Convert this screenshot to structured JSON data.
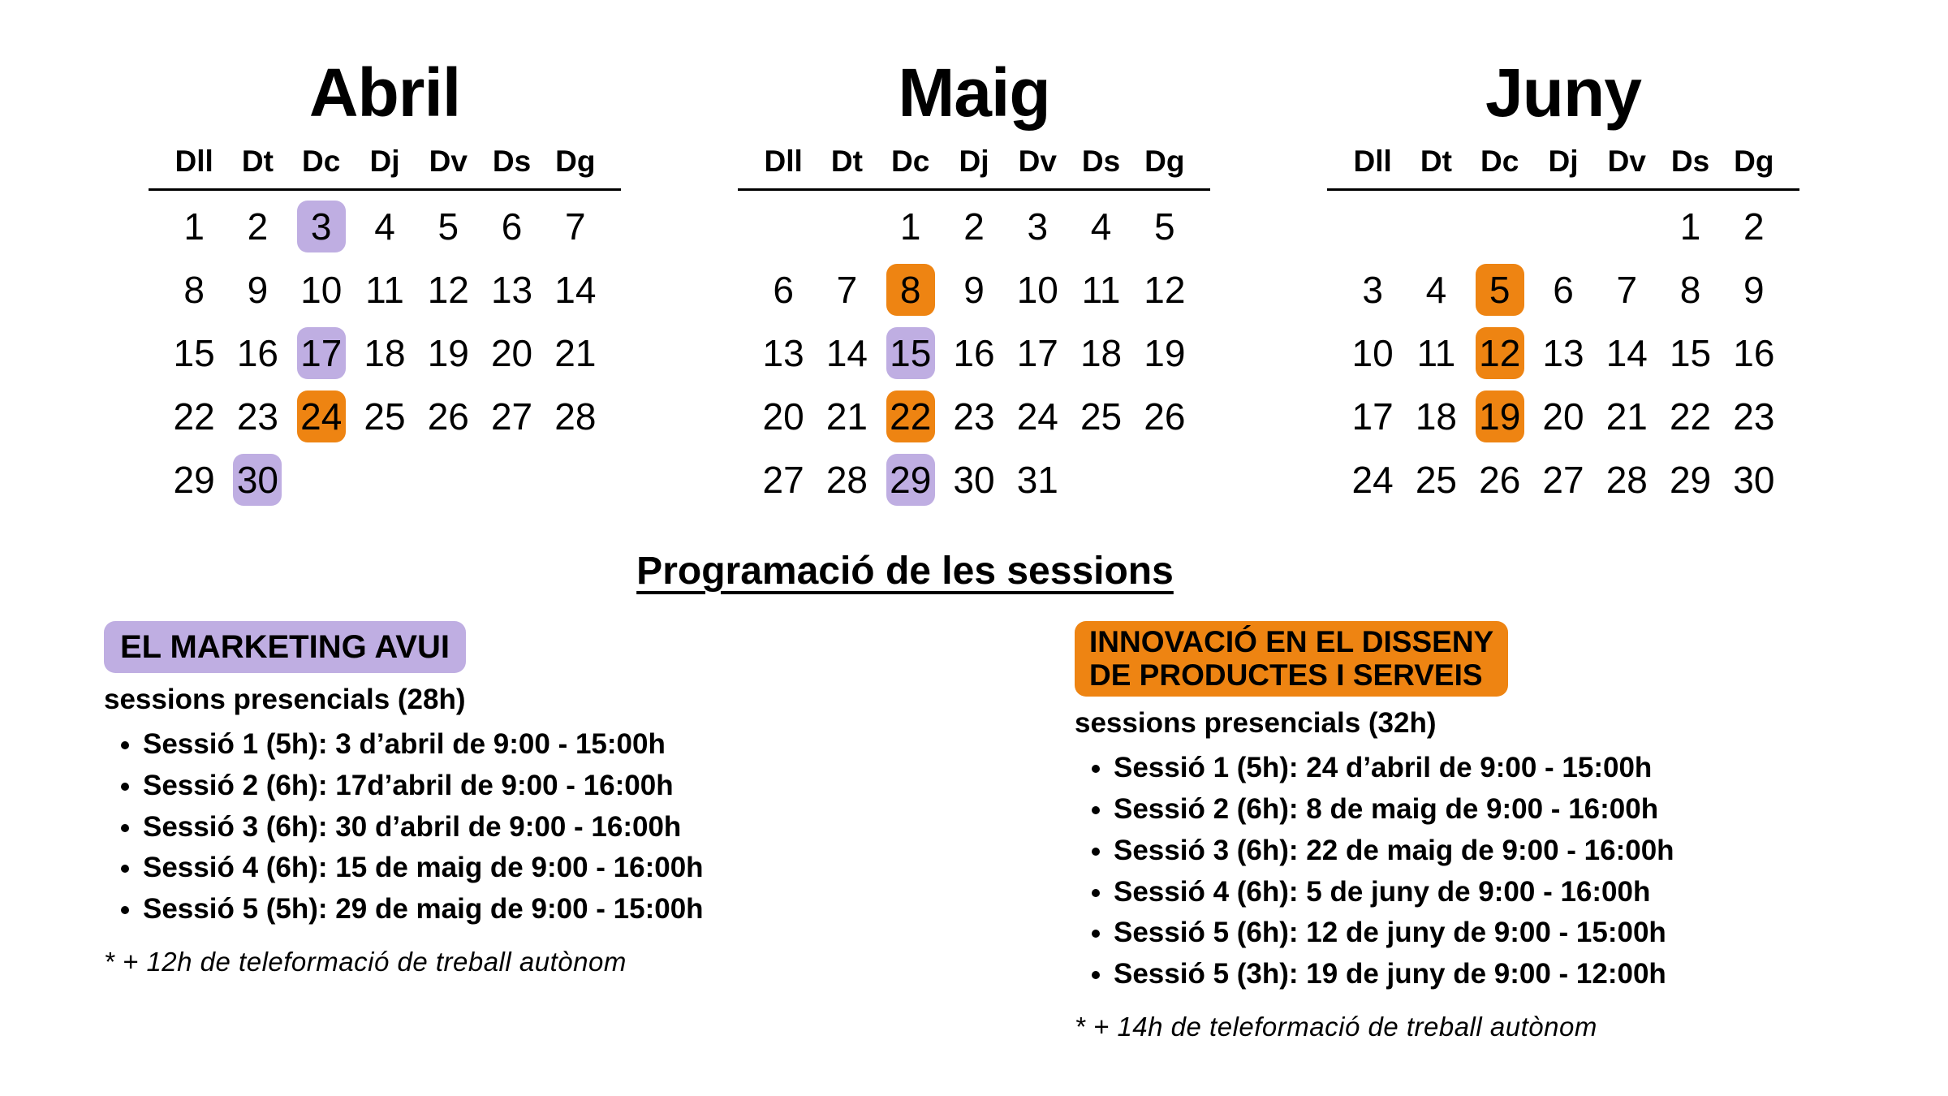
{
  "colors": {
    "purple": "#BFAEE2",
    "orange": "#EE8412",
    "text": "#000000",
    "background": "#FFFFFF"
  },
  "weekday_headers": [
    "Dll",
    "Dt",
    "Dc",
    "Dj",
    "Dv",
    "Ds",
    "Dg"
  ],
  "calendars": [
    {
      "title": "Abril",
      "weeks": [
        [
          "1",
          "2",
          "3",
          "4",
          "5",
          "6",
          "7"
        ],
        [
          "8",
          "9",
          "10",
          "11",
          "12",
          "13",
          "14"
        ],
        [
          "15",
          "16",
          "17",
          "18",
          "19",
          "20",
          "21"
        ],
        [
          "22",
          "23",
          "24",
          "25",
          "26",
          "27",
          "28"
        ],
        [
          "29",
          "30",
          "",
          "",
          "",
          "",
          ""
        ]
      ],
      "highlights": {
        "3": "purple",
        "17": "purple",
        "24": "orange",
        "30": "purple"
      }
    },
    {
      "title": "Maig",
      "weeks": [
        [
          "",
          "",
          "1",
          "2",
          "3",
          "4",
          "5"
        ],
        [
          "6",
          "7",
          "8",
          "9",
          "10",
          "11",
          "12"
        ],
        [
          "13",
          "14",
          "15",
          "16",
          "17",
          "18",
          "19"
        ],
        [
          "20",
          "21",
          "22",
          "23",
          "24",
          "25",
          "26"
        ],
        [
          "27",
          "28",
          "29",
          "30",
          "31",
          "",
          ""
        ]
      ],
      "highlights": {
        "8": "orange",
        "15": "purple",
        "22": "orange",
        "29": "purple"
      }
    },
    {
      "title": "Juny",
      "weeks": [
        [
          "",
          "",
          "",
          "",
          "",
          "1",
          "2"
        ],
        [
          "3",
          "4",
          "5",
          "6",
          "7",
          "8",
          "9"
        ],
        [
          "10",
          "11",
          "12",
          "13",
          "14",
          "15",
          "16"
        ],
        [
          "17",
          "18",
          "19",
          "20",
          "21",
          "22",
          "23"
        ],
        [
          "24",
          "25",
          "26",
          "27",
          "28",
          "29",
          "30"
        ]
      ],
      "highlights": {
        "5": "orange",
        "12": "orange",
        "19": "orange"
      }
    }
  ],
  "sessions_heading": "Programació de les sessions",
  "courses": [
    {
      "title_lines": [
        "EL MARKETING AVUI"
      ],
      "highlight_color": "purple",
      "subtitle": "sessions presencials (28h)",
      "sessions": [
        "Sessió 1 (5h): 3 d’abril de 9:00 - 15:00h",
        "Sessió 2 (6h): 17d’abril de 9:00 - 16:00h",
        "Sessió 3 (6h): 30 d’abril de 9:00 - 16:00h",
        "Sessió 4 (6h): 15 de maig de 9:00 - 16:00h",
        "Sessió 5 (5h): 29 de maig de 9:00 - 15:00h"
      ],
      "footnote": "* + 12h de teleformació de treball autònom"
    },
    {
      "title_lines": [
        "INNOVACIÓ EN EL DISSENY",
        "DE PRODUCTES I SERVEIS"
      ],
      "highlight_color": "orange",
      "subtitle": "sessions presencials (32h)",
      "sessions": [
        "Sessió 1 (5h): 24 d’abril de 9:00 - 15:00h",
        "Sessió 2 (6h): 8 de maig de 9:00 - 16:00h",
        "Sessió 3 (6h): 22 de maig de 9:00 - 16:00h",
        "Sessió 4 (6h): 5 de juny de 9:00 - 16:00h",
        "Sessió 5 (6h): 12 de juny de 9:00 - 15:00h",
        "Sessió 5 (3h): 19 de juny de 9:00 - 12:00h"
      ],
      "footnote": "* + 14h de teleformació de treball autònom"
    }
  ]
}
